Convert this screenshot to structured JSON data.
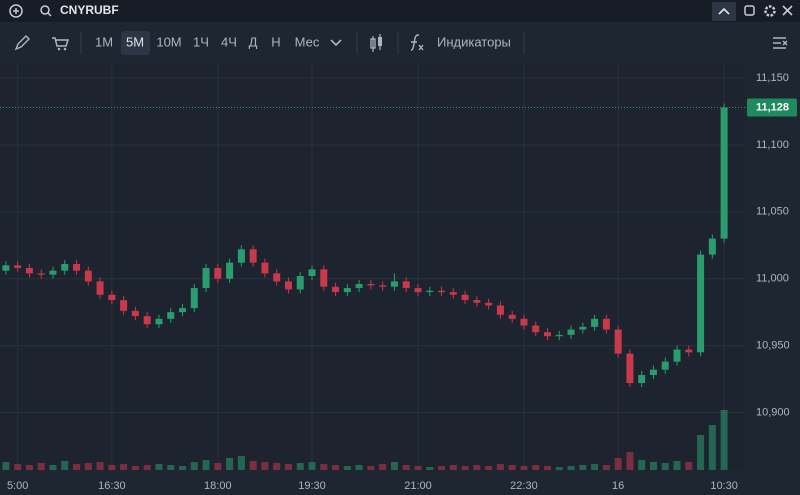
{
  "header": {
    "symbol": "CNYRUBF"
  },
  "toolbar": {
    "intervals": [
      "1M",
      "5M",
      "10M",
      "1Ч",
      "4Ч",
      "Д",
      "Н",
      "Мес"
    ],
    "indicators": "Индикаторы"
  },
  "chart_data": {
    "type": "candlestick",
    "categories": [
      null,
      "5:00",
      null,
      null,
      null,
      null,
      null,
      null,
      null,
      "16:30",
      null,
      null,
      null,
      null,
      null,
      null,
      null,
      null,
      "18:00",
      null,
      null,
      null,
      null,
      null,
      null,
      null,
      "19:30",
      null,
      null,
      null,
      null,
      null,
      null,
      null,
      null,
      "21:00",
      null,
      null,
      null,
      null,
      null,
      null,
      null,
      null,
      "22:30",
      null,
      null,
      null,
      null,
      null,
      null,
      null,
      "16",
      null,
      null,
      null,
      null,
      null,
      null,
      null,
      null,
      "10:30"
    ],
    "open": [
      11006,
      11010,
      11008,
      11004,
      11003,
      11006,
      11011,
      11006,
      10998,
      10988,
      10984,
      10976,
      10972,
      10966,
      10970,
      10975,
      10978,
      10993,
      11008,
      11000,
      11012,
      11022,
      11012,
      11004,
      10998,
      10992,
      11002,
      11007,
      10994,
      10990,
      10993,
      10996,
      10995,
      10994,
      10998,
      10993,
      10990,
      10991,
      10990,
      10988,
      10984,
      10982,
      10980,
      10973,
      10970,
      10965,
      10960,
      10957,
      10958,
      10962,
      10964,
      10970,
      10962,
      10944,
      10922,
      10928,
      10932,
      10938,
      10947,
      10945,
      11018,
      11030
    ],
    "high": [
      11013,
      11013,
      11011,
      11007,
      11009,
      11014,
      11014,
      11009,
      11001,
      10991,
      10987,
      10979,
      10975,
      10973,
      10978,
      10981,
      10996,
      11011,
      11011,
      11015,
      11025,
      11025,
      11015,
      11007,
      11001,
      11005,
      11010,
      11010,
      10997,
      10996,
      10999,
      10999,
      10998,
      11004,
      11001,
      10996,
      10994,
      10994,
      10993,
      10991,
      10987,
      10985,
      10983,
      10976,
      10973,
      10968,
      10963,
      10961,
      10965,
      10967,
      10973,
      10973,
      10965,
      10947,
      10931,
      10935,
      10941,
      10950,
      10950,
      11021,
      11033,
      11131
    ],
    "low": [
      11003,
      11005,
      11001,
      11000,
      11000,
      11003,
      11003,
      10995,
      10985,
      10981,
      10973,
      10969,
      10963,
      10963,
      10967,
      10972,
      10975,
      10990,
      10997,
      10997,
      11009,
      11009,
      11001,
      10995,
      10989,
      10989,
      10999,
      10991,
      10987,
      10987,
      10990,
      10992,
      10991,
      10991,
      10990,
      10987,
      10987,
      10987,
      10985,
      10981,
      10979,
      10977,
      10970,
      10967,
      10962,
      10957,
      10954,
      10954,
      10955,
      10959,
      10961,
      10959,
      10941,
      10919,
      10919,
      10925,
      10929,
      10935,
      10942,
      10942,
      11015,
      11027
    ],
    "close": [
      11010,
      11008,
      11004,
      11003,
      11006,
      11011,
      11006,
      10998,
      10988,
      10984,
      10976,
      10972,
      10966,
      10970,
      10975,
      10978,
      10993,
      11008,
      11000,
      11012,
      11022,
      11012,
      11004,
      10998,
      10992,
      11002,
      11007,
      10994,
      10990,
      10993,
      10996,
      10995,
      10994,
      10998,
      10993,
      10990,
      10991,
      10990,
      10988,
      10984,
      10982,
      10980,
      10973,
      10970,
      10965,
      10960,
      10957,
      10958,
      10962,
      10964,
      10970,
      10962,
      10944,
      10922,
      10928,
      10932,
      10938,
      10947,
      10945,
      11018,
      11030,
      11128
    ],
    "volume": [
      8,
      6,
      5,
      7,
      5,
      9,
      6,
      7,
      8,
      5,
      6,
      4,
      5,
      6,
      5,
      4,
      8,
      10,
      7,
      12,
      14,
      9,
      8,
      7,
      6,
      7,
      8,
      6,
      5,
      4,
      5,
      4,
      6,
      8,
      5,
      4,
      3,
      4,
      5,
      4,
      5,
      4,
      6,
      5,
      4,
      5,
      4,
      3,
      4,
      5,
      6,
      5,
      12,
      18,
      10,
      8,
      7,
      9,
      8,
      35,
      45,
      60
    ],
    "up_color": "#2a9d6f",
    "down_color": "#c8394a",
    "ylim": [
      10857,
      11162
    ],
    "yticks": [
      {
        "value": 10900,
        "label": "10,900"
      },
      {
        "value": 10950,
        "label": "10,950"
      },
      {
        "value": 11000,
        "label": "11,000"
      },
      {
        "value": 11050,
        "label": "11,050"
      },
      {
        "value": 11100,
        "label": "11,100"
      },
      {
        "value": 11150,
        "label": "11,150"
      }
    ],
    "last_price_label": "11,128",
    "grid": true
  }
}
